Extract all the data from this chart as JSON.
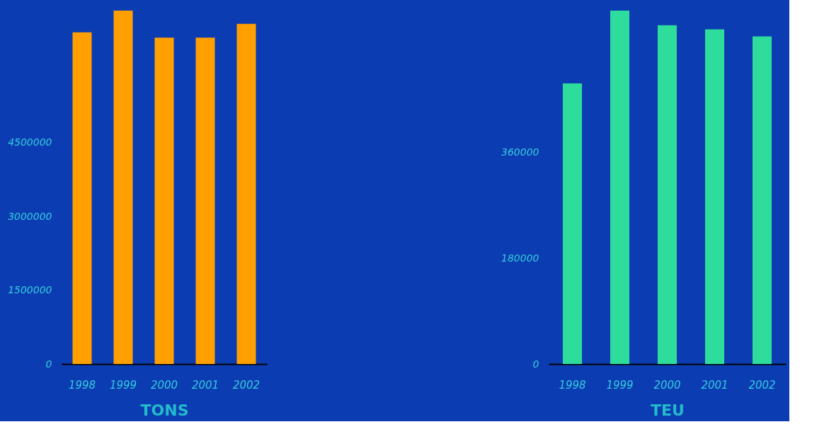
{
  "chart_data": [
    {
      "type": "bar",
      "xlabel": "TONS",
      "categories": [
        "1998",
        "1999",
        "2000",
        "2001",
        "2002"
      ],
      "values": [
        6740000,
        7180000,
        6630000,
        6630000,
        6910000
      ],
      "color": "#ffa000",
      "ylim": [
        0,
        7180000
      ],
      "yticks": [
        0,
        1500000,
        3000000,
        4500000
      ],
      "grid": false
    },
    {
      "type": "bar",
      "xlabel": "TEU",
      "categories": [
        "1998",
        "1999",
        "2000",
        "2001",
        "2002"
      ],
      "values": [
        478000,
        602000,
        577000,
        570000,
        558000
      ],
      "color": "#2edc9c",
      "ylim": [
        0,
        602000
      ],
      "yticks": [
        0,
        180000,
        360000
      ],
      "grid": false
    }
  ]
}
